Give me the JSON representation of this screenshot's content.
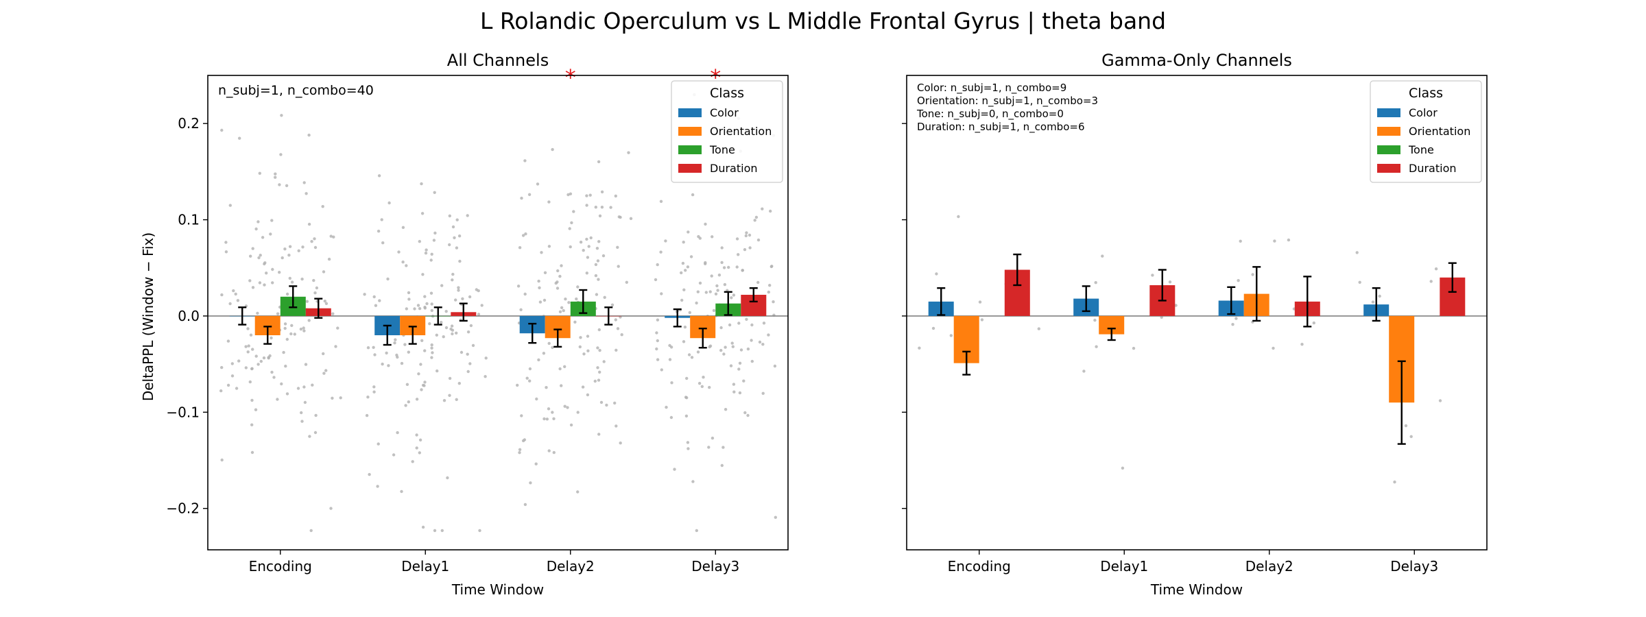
{
  "figure": {
    "suptitle": "L Rolandic Operculum vs L Middle Frontal Gyrus  |  theta band"
  },
  "colors": {
    "Color": "#1f77b4",
    "Orientation": "#ff7f0e",
    "Tone": "#2ca02c",
    "Duration": "#d62728",
    "points": "#b0b0b0",
    "significance": "#e41a1c"
  },
  "chart_data": [
    {
      "type": "bar",
      "title": "All Channels",
      "xlabel": "Time Window",
      "ylabel": "DeltaPPL (Window − Fix)",
      "ylim": [
        -0.243,
        0.25
      ],
      "yticks": [
        0.2,
        0.1,
        0.0,
        -0.1,
        -0.2
      ],
      "ytick_labels": [
        "0.2",
        "0.1",
        "0.0",
        "−0.1",
        "−0.2"
      ],
      "categories": [
        "Encoding",
        "Delay1",
        "Delay2",
        "Delay3"
      ],
      "series": [
        {
          "name": "Color",
          "values": [
            0.0,
            -0.02,
            -0.018,
            -0.002
          ],
          "err": [
            0.009,
            0.01,
            0.01,
            0.009
          ]
        },
        {
          "name": "Orientation",
          "values": [
            -0.02,
            -0.02,
            -0.023,
            -0.023
          ],
          "err": [
            0.009,
            0.009,
            0.009,
            0.01
          ]
        },
        {
          "name": "Tone",
          "values": [
            0.02,
            0.0,
            0.015,
            0.013
          ],
          "err": [
            0.011,
            0.009,
            0.012,
            0.012
          ]
        },
        {
          "name": "Duration",
          "values": [
            0.008,
            0.004,
            0.0,
            0.022
          ],
          "err": [
            0.01,
            0.009,
            0.009,
            0.007
          ]
        }
      ],
      "significance_marker": "*",
      "significant_categories": [
        "Delay2",
        "Delay3"
      ],
      "annotation": "n_subj=1, n_combo=40",
      "legend": {
        "title": "Class",
        "placement": "top-right",
        "entries": [
          "Color",
          "Orientation",
          "Tone",
          "Duration"
        ]
      },
      "individual_points": true,
      "grid": false
    },
    {
      "type": "bar",
      "title": "Gamma-Only Channels",
      "xlabel": "Time Window",
      "ylabel": "",
      "ylim": [
        -0.243,
        0.25
      ],
      "categories": [
        "Encoding",
        "Delay1",
        "Delay2",
        "Delay3"
      ],
      "series": [
        {
          "name": "Color",
          "values": [
            0.015,
            0.018,
            0.016,
            0.012
          ],
          "err": [
            0.014,
            0.013,
            0.014,
            0.017
          ]
        },
        {
          "name": "Orientation",
          "values": [
            -0.049,
            -0.019,
            0.023,
            -0.09
          ],
          "err": [
            0.012,
            0.006,
            0.028,
            0.043
          ]
        },
        {
          "name": "Tone",
          "values": [
            null,
            null,
            null,
            null
          ],
          "err": [
            null,
            null,
            null,
            null
          ]
        },
        {
          "name": "Duration",
          "values": [
            0.048,
            0.032,
            0.015,
            0.04
          ],
          "err": [
            0.016,
            0.016,
            0.026,
            0.015
          ]
        }
      ],
      "annotation_lines": [
        "Color: n_subj=1, n_combo=9",
        "Orientation: n_subj=1, n_combo=3",
        "Tone: n_subj=0, n_combo=0",
        "Duration: n_subj=1, n_combo=6"
      ],
      "legend": {
        "title": "Class",
        "placement": "top-right",
        "entries": [
          "Color",
          "Orientation",
          "Tone",
          "Duration"
        ]
      },
      "individual_points": true,
      "grid": false
    }
  ]
}
